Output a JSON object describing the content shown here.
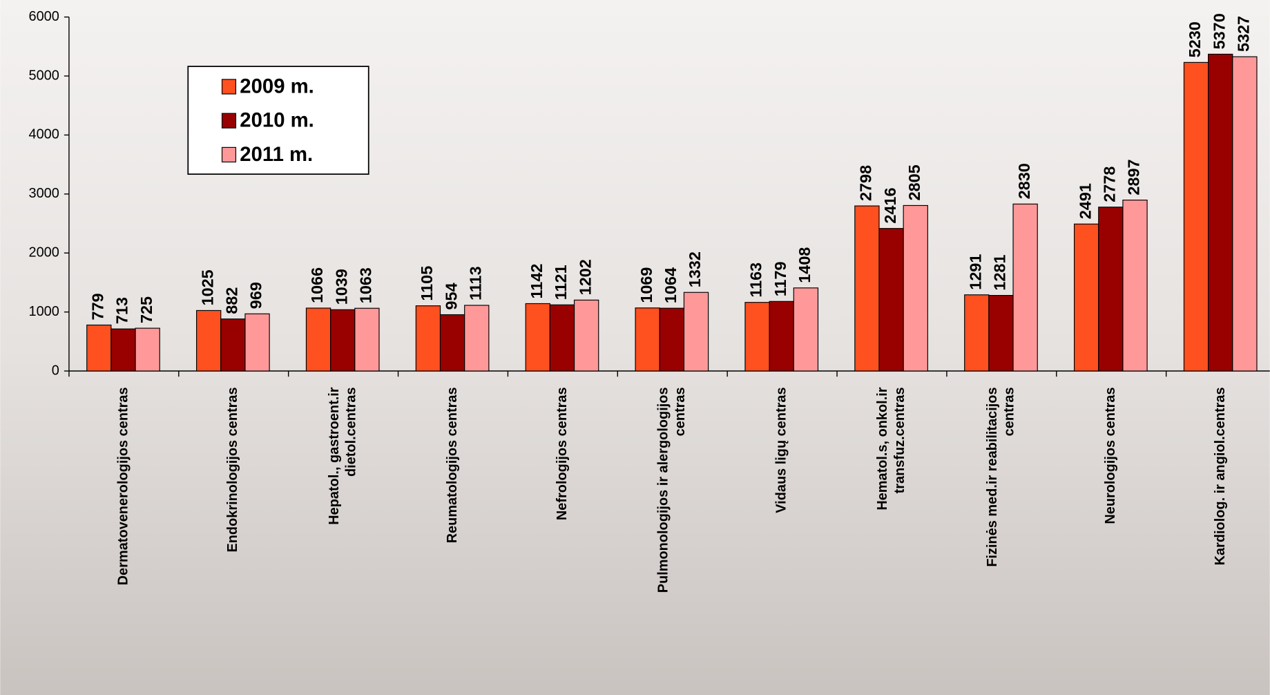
{
  "chart_data": {
    "type": "bar",
    "categories": [
      "Dermatovenerologijos centras",
      "Endokrinologijos centras",
      "Hepatol., gastroent.ir\ndietol.centras",
      "Reumatologijos centras",
      "Nefrologijos centras",
      "Pulmonologijos ir alergologijos\ncentras",
      "Vidaus ligų centras",
      "Hematol.s, onkol.ir\ntransfuz.centras",
      "Fizinės med.ir reabilitacijos\ncentras",
      "Neurologijos centras",
      "Kardiolog. ir angiol.centras"
    ],
    "series": [
      {
        "name": "2009 m.",
        "color": "#ff5020",
        "values": [
          779,
          1025,
          1066,
          1105,
          1142,
          1069,
          1163,
          2798,
          1291,
          2491,
          5230
        ]
      },
      {
        "name": "2010 m.",
        "color": "#990000",
        "values": [
          713,
          882,
          1039,
          954,
          1121,
          1064,
          1179,
          2416,
          1281,
          2778,
          5370
        ]
      },
      {
        "name": "2011 m.",
        "color": "#ff9999",
        "values": [
          725,
          969,
          1063,
          1113,
          1202,
          1332,
          1408,
          2805,
          2830,
          2897,
          5327
        ]
      }
    ],
    "ylim": [
      0,
      6000
    ],
    "yticks": [
      0,
      1000,
      2000,
      3000,
      4000,
      5000,
      6000
    ],
    "legend": "upper left",
    "grid": false
  }
}
